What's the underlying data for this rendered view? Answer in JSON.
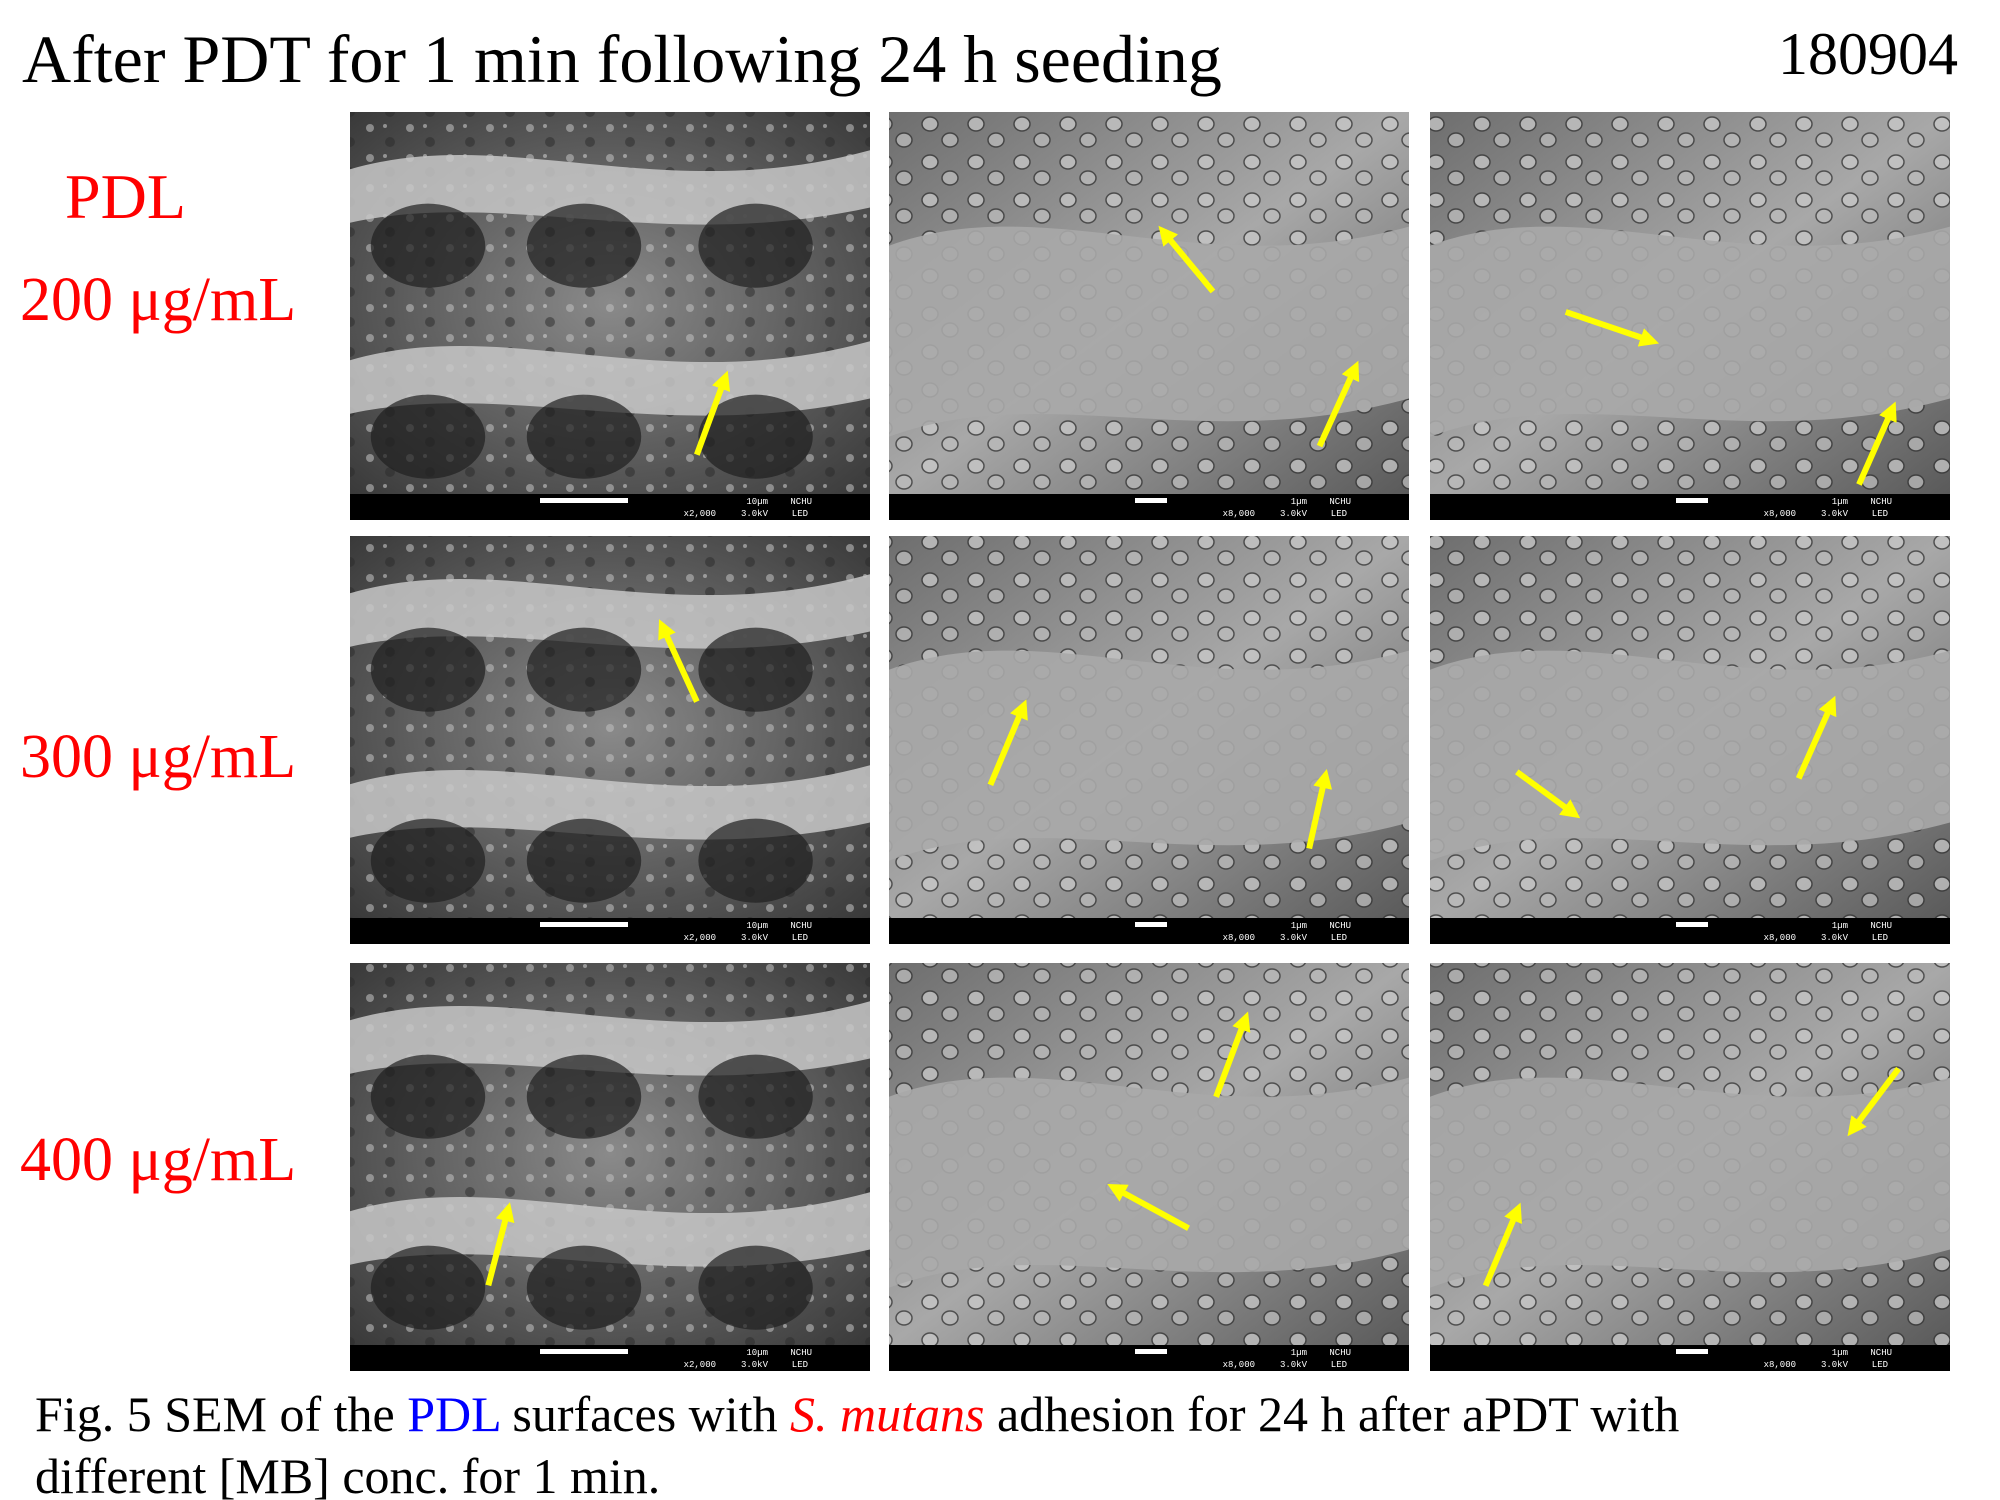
{
  "header": {
    "title": "After PDT for 1 min following 24 h seeding",
    "date": "180904"
  },
  "material": "PDL",
  "rows": [
    "200 μg/mL",
    "300 μg/mL",
    "400 μg/mL"
  ],
  "columns": [
    {
      "scale_bar": "10µm",
      "magnification": "x2,000",
      "voltage": "3.0kV",
      "institution": "NCHU",
      "mode": "LED"
    },
    {
      "scale_bar": "1µm",
      "magnification": "x8,000",
      "voltage": "3.0kV",
      "institution": "NCHU",
      "mode": "LED"
    },
    {
      "scale_bar": "1µm",
      "magnification": "x8,000",
      "voltage": "3.0kV",
      "institution": "NCHU",
      "mode": "LED"
    }
  ],
  "caption": {
    "prefix": "Fig. 5 SEM of the ",
    "material": "PDL",
    "middle": " surfaces with ",
    "organism": "S. mutans",
    "line1_end": " adhesion for 24 h after aPDT with",
    "line2": "different [MB] conc. for 1 min."
  }
}
